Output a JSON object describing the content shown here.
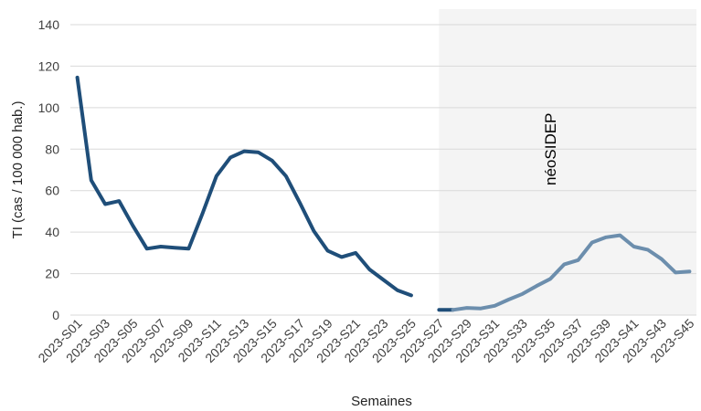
{
  "chart_data": {
    "type": "line",
    "xlabel": "Semaines",
    "ylabel": "TI (cas / 100 000 hab.)",
    "ylim": [
      0,
      140
    ],
    "yticks": [
      0,
      20,
      40,
      60,
      80,
      100,
      120,
      140
    ],
    "grid": true,
    "x_tick_labels": [
      "2023-S01",
      "2023-S03",
      "2023-S05",
      "2023-S07",
      "2023-S09",
      "2023-S11",
      "2023-S13",
      "2023-S15",
      "2023-S17",
      "2023-S19",
      "2023-S21",
      "2023-S23",
      "2023-S25",
      "2023-S27",
      "2023-S29",
      "2023-S31",
      "2023-S33",
      "2023-S35",
      "2023-S37",
      "2023-S39",
      "2023-S41",
      "2023-S43",
      "2023-S45"
    ],
    "categories": [
      "2023-S01",
      "2023-S02",
      "2023-S03",
      "2023-S04",
      "2023-S05",
      "2023-S06",
      "2023-S07",
      "2023-S08",
      "2023-S09",
      "2023-S10",
      "2023-S11",
      "2023-S12",
      "2023-S13",
      "2023-S14",
      "2023-S15",
      "2023-S16",
      "2023-S17",
      "2023-S18",
      "2023-S19",
      "2023-S20",
      "2023-S21",
      "2023-S22",
      "2023-S23",
      "2023-S24",
      "2023-S25",
      "2023-S26",
      "2023-S27",
      "2023-S28",
      "2023-S29",
      "2023-S30",
      "2023-S31",
      "2023-S32",
      "2023-S33",
      "2023-S34",
      "2023-S35",
      "2023-S36",
      "2023-S37",
      "2023-S38",
      "2023-S39",
      "2023-S40",
      "2023-S41",
      "2023-S42",
      "2023-S43",
      "2023-S44",
      "2023-S45"
    ],
    "series": [
      {
        "color": "#1f4e79",
        "x": [
          "2023-S01",
          "2023-S02",
          "2023-S03",
          "2023-S04",
          "2023-S05",
          "2023-S06",
          "2023-S07",
          "2023-S08",
          "2023-S09",
          "2023-S10",
          "2023-S11",
          "2023-S12",
          "2023-S13",
          "2023-S14",
          "2023-S15",
          "2023-S16",
          "2023-S17",
          "2023-S18",
          "2023-S19",
          "2023-S20",
          "2023-S21",
          "2023-S22",
          "2023-S23",
          "2023-S24",
          "2023-S25"
        ],
        "values": [
          114.5,
          65,
          53.5,
          55,
          43,
          32,
          33,
          32.5,
          32,
          49,
          67,
          76,
          79,
          78.5,
          74.5,
          67,
          54,
          40.5,
          31,
          28,
          30,
          22,
          17,
          12,
          9.5
        ]
      },
      {
        "color": "#1f4e79",
        "x": [
          "2023-S27",
          "2023-S28"
        ],
        "values": [
          2.5,
          2.5
        ]
      },
      {
        "color": "#6c8ead",
        "x": [
          "2023-S28",
          "2023-S29",
          "2023-S30",
          "2023-S31",
          "2023-S32",
          "2023-S33",
          "2023-S34",
          "2023-S35",
          "2023-S36",
          "2023-S37",
          "2023-S38",
          "2023-S39",
          "2023-S40",
          "2023-S41",
          "2023-S42",
          "2023-S43",
          "2023-S44",
          "2023-S45"
        ],
        "values": [
          2.5,
          3.5,
          3.2,
          4.5,
          7.5,
          10.2,
          14,
          17.5,
          24.5,
          26.5,
          35,
          37.5,
          38.5,
          33,
          31.5,
          27,
          20.5,
          21
        ]
      }
    ],
    "shaded_region": {
      "from": "2023-S28",
      "to": "2023-S45",
      "color": "#f4f4f4"
    },
    "annotation": {
      "text": "néoSIDEP",
      "at": "2023-S35",
      "value": 80
    },
    "colors": {
      "grid": "#d9d9d9",
      "shade": "#f4f4f4"
    }
  }
}
